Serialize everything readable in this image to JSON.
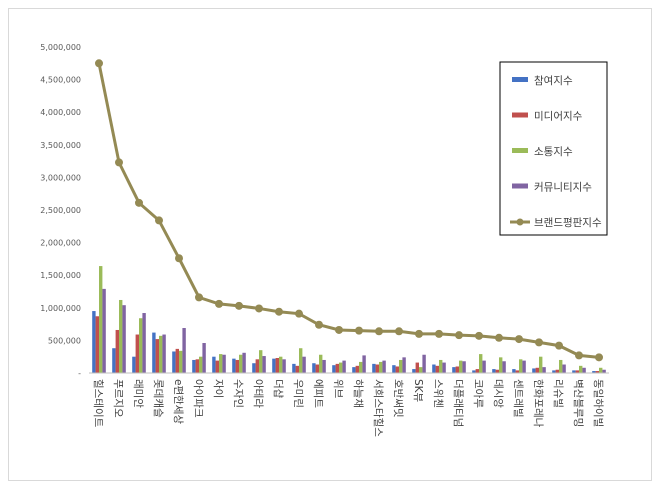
{
  "chart_data": {
    "type": "bar",
    "title": "",
    "xlabel": "",
    "ylabel": "",
    "ylim": [
      0,
      5000000
    ],
    "yticks": [
      0,
      500000,
      1000000,
      1500000,
      2000000,
      2500000,
      3000000,
      3500000,
      4000000,
      4500000,
      5000000
    ],
    "ytick_labels": [
      "-",
      "500,000",
      "1,000,000",
      "1,500,000",
      "2,000,000",
      "2,500,000",
      "3,000,000",
      "3,500,000",
      "4,000,000",
      "4,500,000",
      "5,000,000"
    ],
    "grid": false,
    "legend_position": "top-right",
    "categories": [
      "힐스테이트",
      "푸르지오",
      "래미안",
      "롯데캐슬",
      "e편한세상",
      "아이파크",
      "자이",
      "수자인",
      "아테라",
      "더샵",
      "우미린",
      "에피트",
      "위브",
      "하늘채",
      "서희스타힐스",
      "호반써밋",
      "SK뷰",
      "스위첸",
      "더플래티넘",
      "코아루",
      "데시앙",
      "센트레빌",
      "한화포레나",
      "리슈빌",
      "벽산블루밍",
      "동일하이빌"
    ],
    "series": [
      {
        "name": "참여지수",
        "type": "bar",
        "color": "#4472C4",
        "values": [
          950000,
          380000,
          250000,
          620000,
          330000,
          200000,
          250000,
          220000,
          150000,
          220000,
          140000,
          150000,
          120000,
          90000,
          140000,
          120000,
          60000,
          130000,
          90000,
          40000,
          60000,
          60000,
          70000,
          40000,
          40000,
          30000
        ]
      },
      {
        "name": "미디어지수",
        "type": "bar",
        "color": "#C0504D",
        "values": [
          870000,
          660000,
          590000,
          520000,
          370000,
          210000,
          190000,
          200000,
          210000,
          230000,
          110000,
          130000,
          140000,
          110000,
          130000,
          100000,
          160000,
          110000,
          100000,
          60000,
          50000,
          40000,
          80000,
          50000,
          40000,
          30000
        ]
      },
      {
        "name": "소통지수",
        "type": "bar",
        "color": "#9BBB59",
        "values": [
          1640000,
          1120000,
          840000,
          570000,
          340000,
          250000,
          290000,
          280000,
          350000,
          250000,
          380000,
          280000,
          160000,
          170000,
          170000,
          200000,
          90000,
          200000,
          190000,
          290000,
          240000,
          210000,
          250000,
          200000,
          110000,
          80000
        ]
      },
      {
        "name": "커뮤니티지수",
        "type": "bar",
        "color": "#8064A2",
        "values": [
          1290000,
          1040000,
          920000,
          590000,
          690000,
          460000,
          280000,
          310000,
          260000,
          210000,
          250000,
          200000,
          190000,
          270000,
          190000,
          240000,
          280000,
          160000,
          180000,
          190000,
          180000,
          190000,
          90000,
          130000,
          80000,
          50000
        ]
      },
      {
        "name": "브랜드평판지수",
        "type": "line",
        "color": "#948A54",
        "values": [
          4750000,
          3230000,
          2610000,
          2340000,
          1760000,
          1160000,
          1060000,
          1030000,
          990000,
          940000,
          910000,
          740000,
          660000,
          650000,
          640000,
          640000,
          600000,
          600000,
          580000,
          570000,
          540000,
          520000,
          470000,
          420000,
          270000,
          240000
        ]
      }
    ]
  }
}
